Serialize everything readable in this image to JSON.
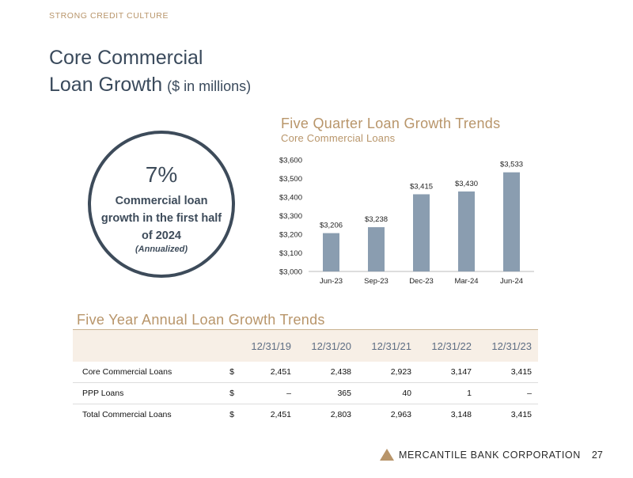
{
  "header": {
    "section_label": "STRONG CREDIT CULTURE",
    "title_line1": "Core Commercial",
    "title_line2": "Loan Growth",
    "title_unit": "($ in millions)"
  },
  "highlight": {
    "percent": "7%",
    "description": "Commercial loan growth in the first half of 2024",
    "note": "(Annualized)"
  },
  "chart_section": {
    "title": "Five Quarter Loan Growth Trends",
    "subtitle": "Core Commercial Loans"
  },
  "chart_data": {
    "type": "bar",
    "title": "Five Quarter Loan Growth Trends",
    "subtitle": "Core Commercial Loans",
    "categories": [
      "Jun-23",
      "Sep-23",
      "Dec-23",
      "Mar-24",
      "Jun-24"
    ],
    "values": [
      3206,
      3238,
      3415,
      3430,
      3533
    ],
    "data_labels": [
      "$3,206",
      "$3,238",
      "$3,415",
      "$3,430",
      "$3,533"
    ],
    "yticks": [
      3000,
      3100,
      3200,
      3300,
      3400,
      3500,
      3600
    ],
    "ytick_labels": [
      "$3,000",
      "$3,100",
      "$3,200",
      "$3,300",
      "$3,400",
      "$3,500",
      "$3,600"
    ],
    "ylim": [
      3000,
      3600
    ],
    "bar_color": "#8a9db0",
    "grid": false
  },
  "table": {
    "title": "Five Year Annual Loan Growth Trends",
    "columns": [
      "12/31/19",
      "12/31/20",
      "12/31/21",
      "12/31/22",
      "12/31/23"
    ],
    "rows": [
      {
        "label": "Core Commercial Loans",
        "currency": "$",
        "values": [
          "2,451",
          "2,438",
          "2,923",
          "3,147",
          "3,415"
        ]
      },
      {
        "label": "PPP Loans",
        "currency": "$",
        "values": [
          "–",
          "365",
          "40",
          "1",
          "–"
        ]
      },
      {
        "label": "Total Commercial Loans",
        "currency": "$",
        "values": [
          "2,451",
          "2,803",
          "2,963",
          "3,148",
          "3,415"
        ]
      }
    ]
  },
  "footer": {
    "company": "MERCANTILE BANK CORPORATION",
    "page_number": "27"
  },
  "colors": {
    "gold": "#b8956a",
    "navy": "#3d4b5a",
    "bar": "#8a9db0"
  }
}
